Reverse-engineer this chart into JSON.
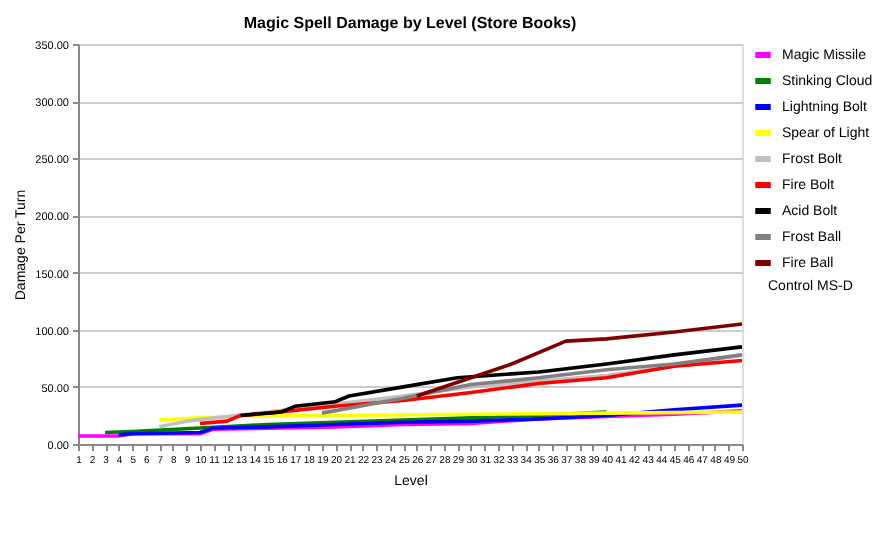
{
  "chart_data": {
    "type": "line",
    "title": "Magic Spell Damage by Level (Store Books)",
    "xlabel": "Level",
    "ylabel": "Damage Per Turn",
    "xlim": [
      1,
      50
    ],
    "xticks": [
      1,
      2,
      3,
      4,
      5,
      6,
      7,
      8,
      9,
      10,
      11,
      12,
      13,
      14,
      15,
      16,
      17,
      18,
      19,
      20,
      21,
      22,
      23,
      24,
      25,
      26,
      27,
      28,
      29,
      30,
      31,
      32,
      33,
      34,
      35,
      36,
      37,
      38,
      39,
      40,
      41,
      42,
      43,
      44,
      45,
      46,
      47,
      48,
      49,
      50
    ],
    "ylim": [
      0,
      350
    ],
    "yticks": [
      {
        "value": 0,
        "label": "0.00"
      },
      {
        "value": 50,
        "label": "50.00"
      },
      {
        "value": 100,
        "label": "100.00"
      },
      {
        "value": 150,
        "label": "150.00"
      },
      {
        "value": 200,
        "label": "200.00"
      },
      {
        "value": 250,
        "label": "250.00"
      },
      {
        "value": 300,
        "label": "300.00"
      },
      {
        "value": 350,
        "label": "350.00"
      }
    ],
    "grid": "y",
    "legend": "right",
    "marker": "none",
    "line_style": "solid",
    "series": [
      {
        "name": "Magic Missile",
        "color": "#ff00ff",
        "x": [
          1,
          4,
          5,
          10,
          11,
          20,
          25,
          30,
          35,
          40,
          45,
          50
        ],
        "values": [
          7,
          7,
          9,
          9,
          13,
          15,
          17,
          18,
          22,
          24,
          26,
          29
        ]
      },
      {
        "name": "Stinking Cloud",
        "color": "#008000",
        "x": [
          3,
          5,
          10,
          15,
          20,
          25,
          30,
          35,
          40
        ],
        "values": [
          10,
          11,
          14,
          17,
          19,
          21,
          23,
          25,
          28
        ]
      },
      {
        "name": "Lightning Bolt",
        "color": "#0000ff",
        "x": [
          4,
          5,
          10,
          11,
          15,
          20,
          25,
          30,
          35,
          40,
          45,
          50
        ],
        "values": [
          8,
          9,
          10,
          14,
          15,
          17,
          19,
          20,
          22,
          25,
          30,
          34
        ]
      },
      {
        "name": "Spear of Light",
        "color": "#ffff00",
        "x": [
          7,
          10,
          15,
          20,
          30,
          40,
          50
        ],
        "values": [
          21,
          23,
          25,
          25,
          26,
          27,
          28
        ]
      },
      {
        "name": "Frost Bolt",
        "color": "#c0c0c0",
        "x": [
          7,
          9,
          15,
          20,
          25,
          30,
          35,
          40,
          45,
          50
        ],
        "values": [
          15,
          20,
          28,
          35,
          42,
          50,
          55,
          60,
          68,
          78
        ]
      },
      {
        "name": "Fire Bolt",
        "color": "#ff0000",
        "x": [
          10,
          12,
          13,
          15,
          20,
          25,
          30,
          35,
          40,
          45,
          50
        ],
        "values": [
          18,
          20,
          25,
          27,
          33,
          38,
          45,
          53,
          58,
          68,
          73
        ]
      },
      {
        "name": "Acid Bolt",
        "color": "#000000",
        "x": [
          13,
          16,
          17,
          20,
          21,
          25,
          29,
          35,
          40,
          45,
          50
        ],
        "values": [
          25,
          28,
          33,
          37,
          42,
          50,
          58,
          63,
          70,
          78,
          85
        ]
      },
      {
        "name": "Frost Ball",
        "color": "#808080",
        "x": [
          19,
          25,
          30,
          35,
          40,
          45,
          50
        ],
        "values": [
          27,
          40,
          52,
          58,
          65,
          70,
          78
        ]
      },
      {
        "name": "Fire Ball",
        "color": "#800000",
        "x": [
          26,
          30,
          33,
          35,
          37,
          40,
          45,
          50
        ],
        "values": [
          42,
          58,
          70,
          80,
          90,
          92,
          98,
          105
        ]
      }
    ],
    "annotations": [
      "Control MS-D"
    ]
  }
}
